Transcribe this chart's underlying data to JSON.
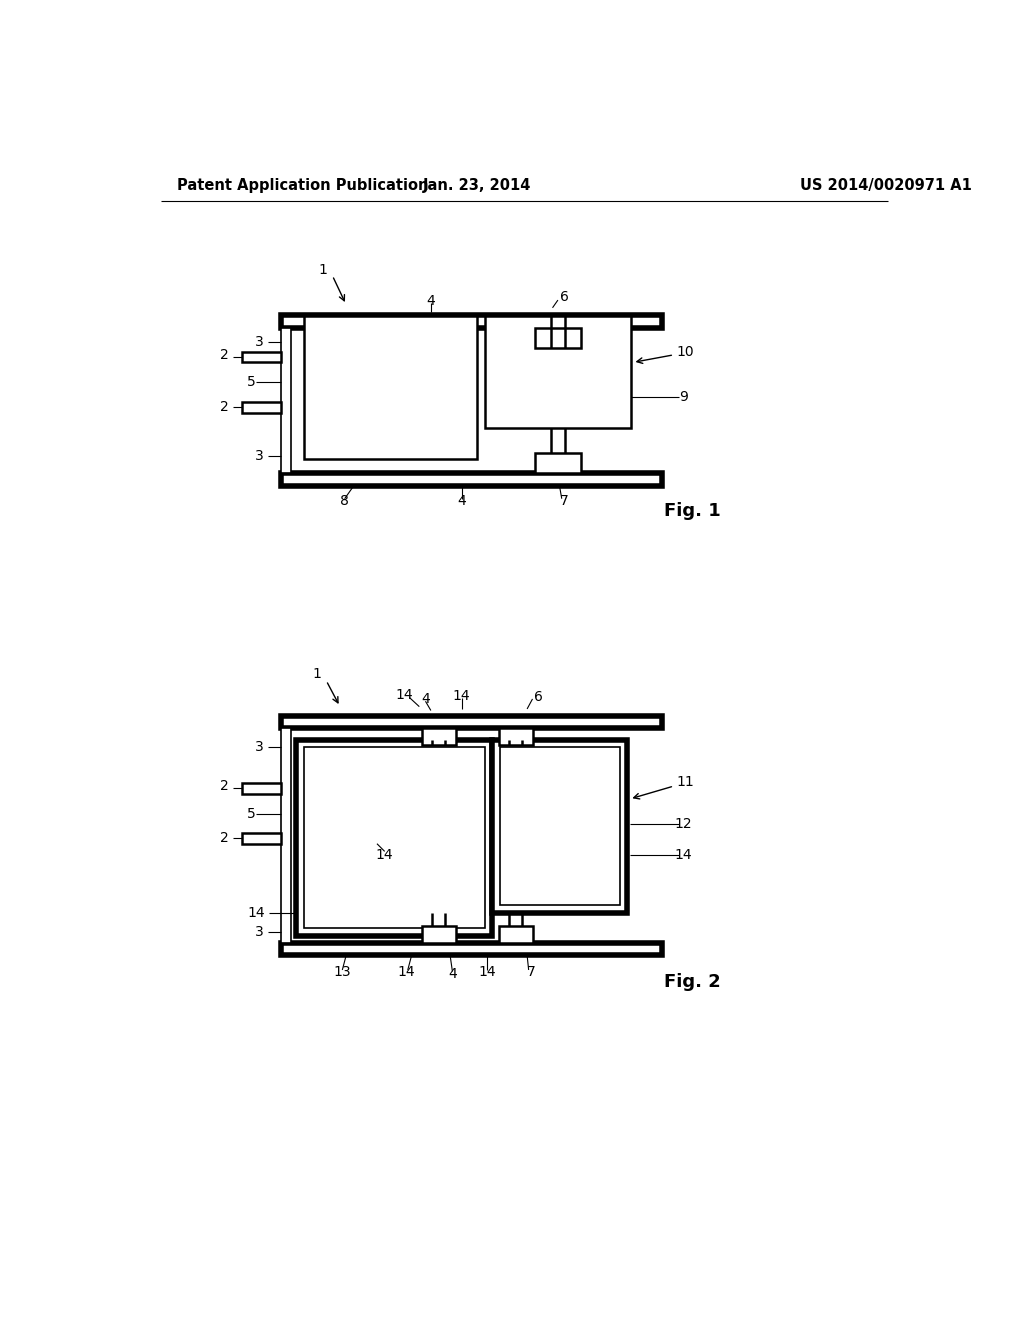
{
  "bg_color": "#ffffff",
  "line_color": "#000000",
  "header_left": "Patent Application Publication",
  "header_mid": "Jan. 23, 2014",
  "header_right": "US 2014/0020971 A1",
  "fig1_label": "Fig. 1",
  "fig2_label": "Fig. 2",
  "header_fontsize": 10.5,
  "label_fontsize": 10,
  "figlabel_fontsize": 13
}
